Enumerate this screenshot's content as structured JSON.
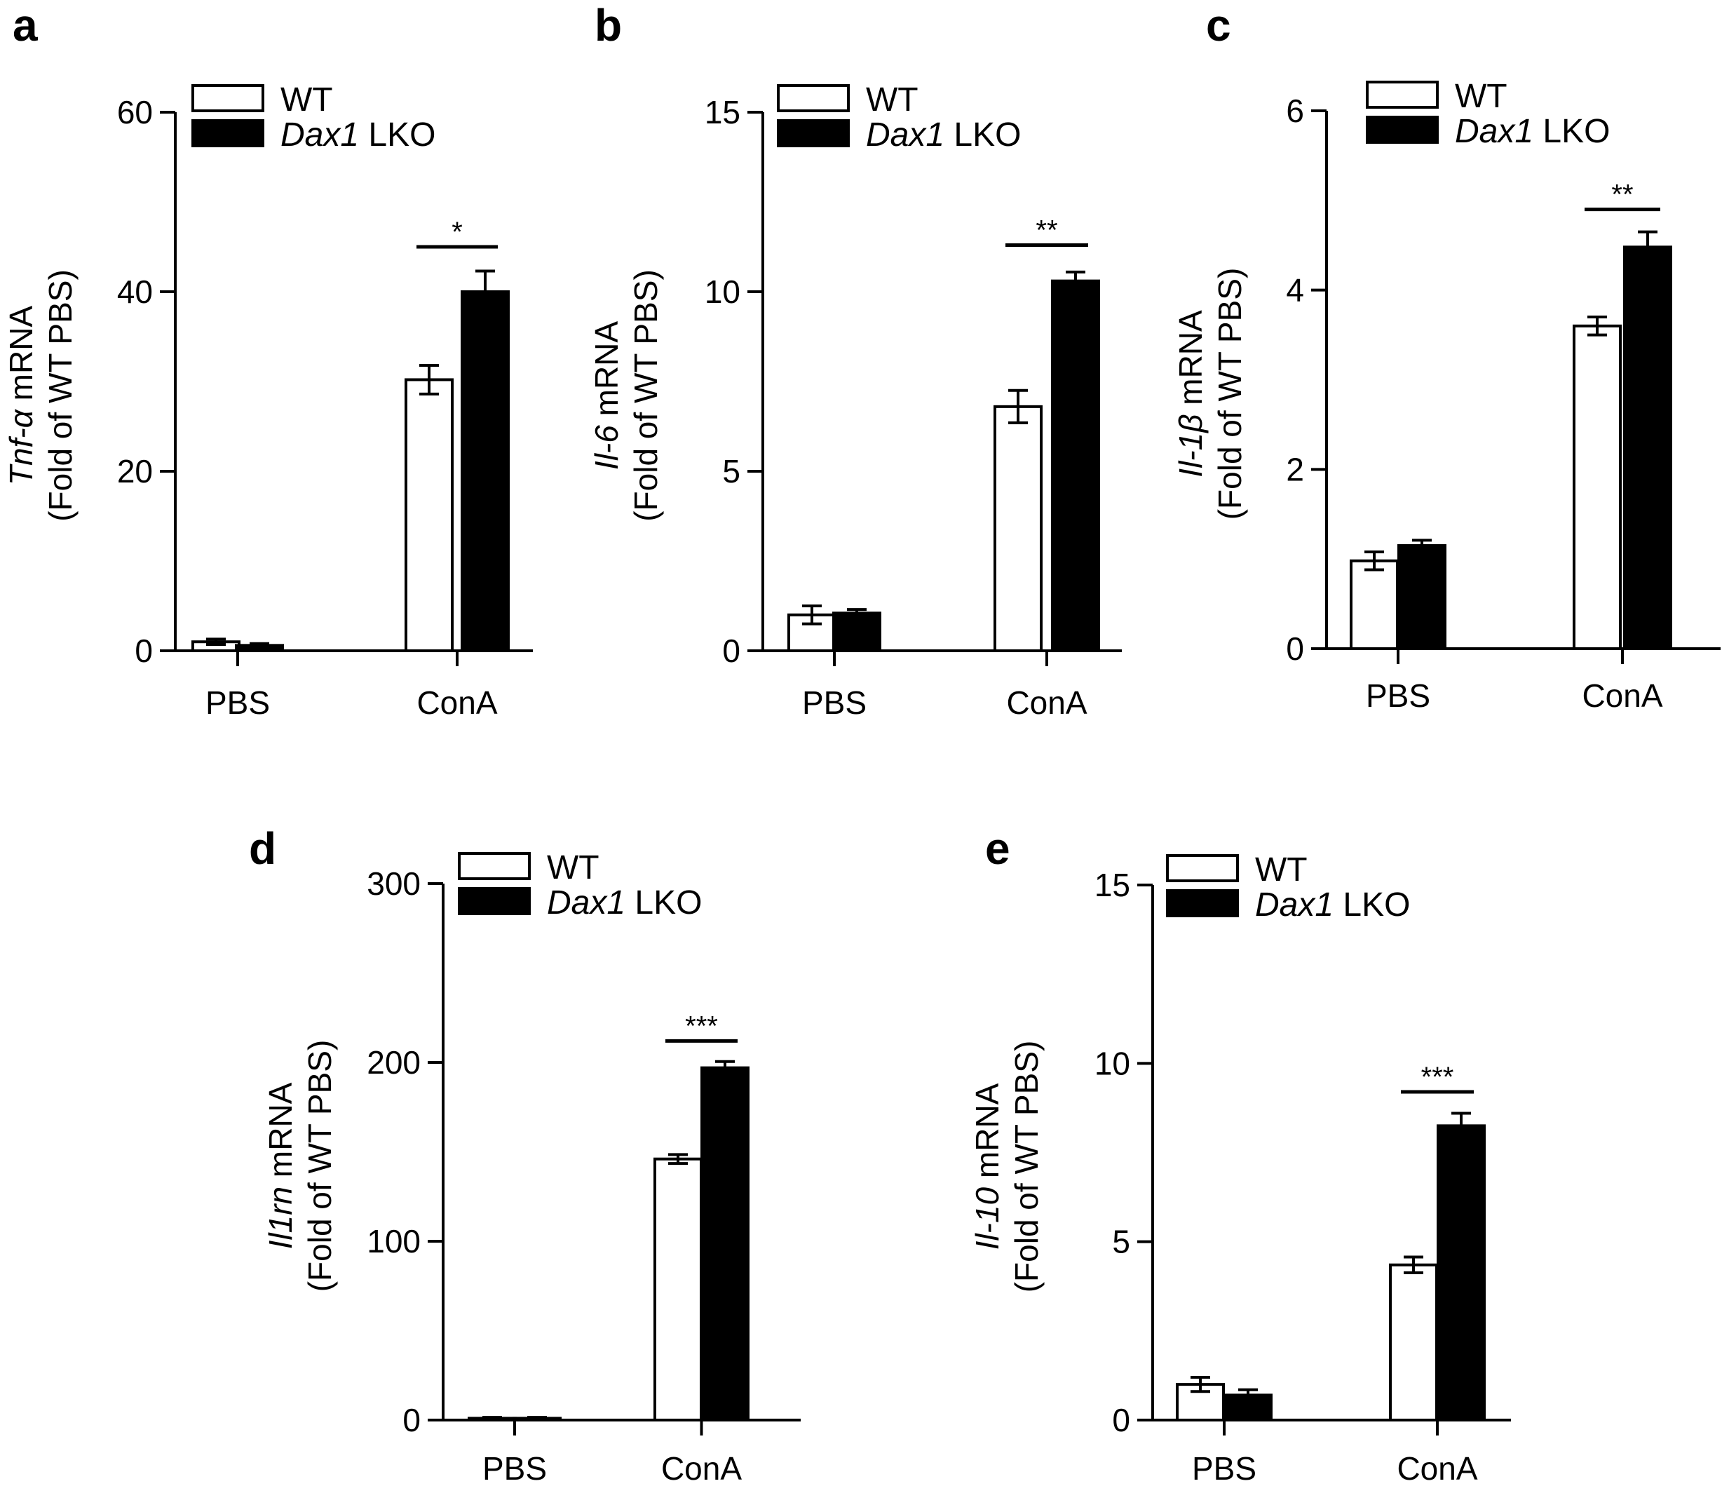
{
  "legend": {
    "wt_label": "WT",
    "lko_gene": "Dax1",
    "lko_suffix": " LKO",
    "wt_fill": "#ffffff",
    "lko_fill": "#000000"
  },
  "chart_data": [
    {
      "type": "bar",
      "panel": "a",
      "title": "",
      "ylabel_gene": "Tnf-α",
      "ylabel_rest": " mRNA",
      "ylabel_line2": "(Fold of WT PBS)",
      "categories": [
        "PBS",
        "ConA"
      ],
      "series": [
        {
          "name": "WT",
          "values": [
            1.0,
            30.2
          ],
          "errors": [
            0.3,
            1.6
          ]
        },
        {
          "name": "Dax1 LKO",
          "values": [
            0.6,
            40.0
          ],
          "errors": [
            0.2,
            2.3
          ]
        }
      ],
      "ylim": [
        0,
        60
      ],
      "yticks": [
        "0",
        "20",
        "40",
        "60"
      ],
      "significance": [
        {
          "category": "ConA",
          "label": "*",
          "y": 45
        }
      ]
    },
    {
      "type": "bar",
      "panel": "b",
      "title": "",
      "ylabel_gene": "Il-6",
      "ylabel_rest": " mRNA",
      "ylabel_line2": "(Fold of WT PBS)",
      "categories": [
        "PBS",
        "ConA"
      ],
      "series": [
        {
          "name": "WT",
          "values": [
            1.0,
            6.8
          ],
          "errors": [
            0.25,
            0.45
          ]
        },
        {
          "name": "Dax1 LKO",
          "values": [
            1.05,
            10.3
          ],
          "errors": [
            0.1,
            0.25
          ]
        }
      ],
      "ylim": [
        0,
        15
      ],
      "yticks": [
        "0",
        "5",
        "10",
        "15"
      ],
      "significance": [
        {
          "category": "ConA",
          "label": "**",
          "y": 11.3
        }
      ]
    },
    {
      "type": "bar",
      "panel": "c",
      "title": "",
      "ylabel_gene": "Il-1β",
      "ylabel_rest": " mRNA",
      "ylabel_line2": "(Fold of WT PBS)",
      "categories": [
        "PBS",
        "ConA"
      ],
      "series": [
        {
          "name": "WT",
          "values": [
            0.98,
            3.6
          ],
          "errors": [
            0.1,
            0.1
          ]
        },
        {
          "name": "Dax1 LKO",
          "values": [
            1.15,
            4.48
          ],
          "errors": [
            0.06,
            0.17
          ]
        }
      ],
      "ylim": [
        0,
        6
      ],
      "yticks": [
        "0",
        "2",
        "4",
        "6"
      ],
      "significance": [
        {
          "category": "ConA",
          "label": "**",
          "y": 4.9
        }
      ]
    },
    {
      "type": "bar",
      "panel": "d",
      "title": "",
      "ylabel_gene": "Il1rn",
      "ylabel_rest": " mRNA",
      "ylabel_line2": "(Fold of WT PBS)",
      "categories": [
        "PBS",
        "ConA"
      ],
      "series": [
        {
          "name": "WT",
          "values": [
            1,
            146
          ],
          "errors": [
            0.5,
            2.5
          ]
        },
        {
          "name": "Dax1 LKO",
          "values": [
            1,
            197
          ],
          "errors": [
            0.5,
            3.5
          ]
        }
      ],
      "ylim": [
        0,
        300
      ],
      "yticks": [
        "0",
        "100",
        "200",
        "300"
      ],
      "significance": [
        {
          "category": "ConA",
          "label": "***",
          "y": 212
        }
      ]
    },
    {
      "type": "bar",
      "panel": "e",
      "title": "",
      "ylabel_gene": "Il-10",
      "ylabel_rest": " mRNA",
      "ylabel_line2": "(Fold of WT PBS)",
      "categories": [
        "PBS",
        "ConA"
      ],
      "series": [
        {
          "name": "WT",
          "values": [
            1.0,
            4.35
          ],
          "errors": [
            0.2,
            0.22
          ]
        },
        {
          "name": "Dax1 LKO",
          "values": [
            0.7,
            8.25
          ],
          "errors": [
            0.15,
            0.35
          ]
        }
      ],
      "ylim": [
        0,
        15
      ],
      "yticks": [
        "0",
        "5",
        "10",
        "15"
      ],
      "significance": [
        {
          "category": "ConA",
          "label": "***",
          "y": 9.2
        }
      ]
    }
  ]
}
